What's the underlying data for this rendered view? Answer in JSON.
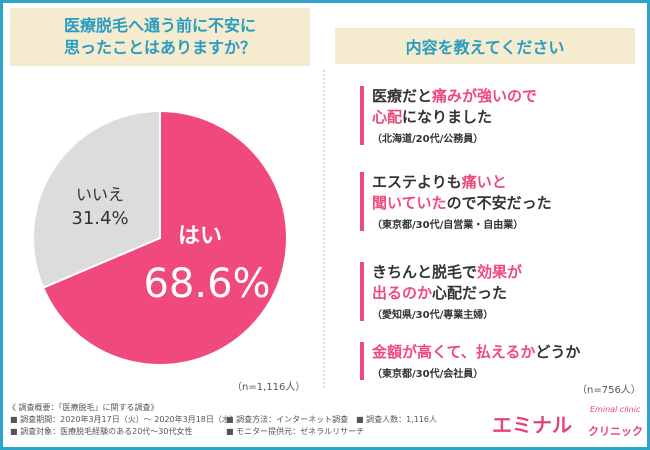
{
  "left_panel": {
    "title_line1": "医療脱毛へ通う前に不安に",
    "title_line2": "思ったことはありますか？",
    "n_label": "（n=1,116人）"
  },
  "right_panel": {
    "title": "内容を教えてください",
    "n_label": "（n=756人）",
    "quotes": [
      {
        "line1": [
          {
            "t": "医療だと",
            "hl": false
          },
          {
            "t": "痛みが強いので",
            "hl": true
          }
        ],
        "line2": [
          {
            "t": "心配",
            "hl": true
          },
          {
            "t": "になりました",
            "hl": false
          }
        ],
        "attr": "（北海道/20代/公務員）"
      },
      {
        "line1": [
          {
            "t": "エステよりも",
            "hl": false
          },
          {
            "t": "痛いと",
            "hl": true
          }
        ],
        "line2": [
          {
            "t": "聞いていた",
            "hl": true
          },
          {
            "t": "ので不安だった",
            "hl": false
          }
        ],
        "attr": "（東京都/30代/自営業・自由業）"
      },
      {
        "line1": [
          {
            "t": "きちんと脱毛で",
            "hl": false
          },
          {
            "t": "効果が",
            "hl": true
          }
        ],
        "line2": [
          {
            "t": "出るのか",
            "hl": true
          },
          {
            "t": "心配だった",
            "hl": false
          }
        ],
        "attr": "（愛知県/30代/専業主婦）"
      },
      {
        "line1": [
          {
            "t": "金額が高くて、払えるか",
            "hl": true
          },
          {
            "t": "どうか",
            "hl": false
          }
        ],
        "line2": [],
        "attr": "（東京都/30代/会社員）"
      }
    ]
  },
  "chart_data": {
    "type": "pie",
    "title": "医療脱毛へ通う前に不安に思ったことはありますか？",
    "slices": [
      {
        "label": "はい",
        "value": 68.6,
        "display": "68.6%",
        "color": "#ef4a7b"
      },
      {
        "label": "いいえ",
        "value": 31.4,
        "display": "31.4%",
        "color": "#dcdcdc"
      }
    ],
    "legend": "none"
  },
  "footer": {
    "heading": "《 調査概要：「医療脱毛」に関する調査》",
    "period": "■ 調査期間：2020年3月17日（火）～ 2020年3月18日（水）",
    "method": "■ 調査方法：インターネット調査",
    "count": "■ 調査人数：1,116人",
    "target": "■ 調査対象：医療脱毛経験のある20代～30代女性",
    "source": "■ モニター提供元：ゼネラルリサーチ"
  },
  "logo": {
    "main": "エミナル",
    "sub": "クリニック",
    "small": "Eminal clinic"
  },
  "colors": {
    "accent": "#ef4a7b",
    "frame": "#2ba6c8",
    "header_bg": "#f5ebcf",
    "header_text": "#2a9cc0"
  }
}
